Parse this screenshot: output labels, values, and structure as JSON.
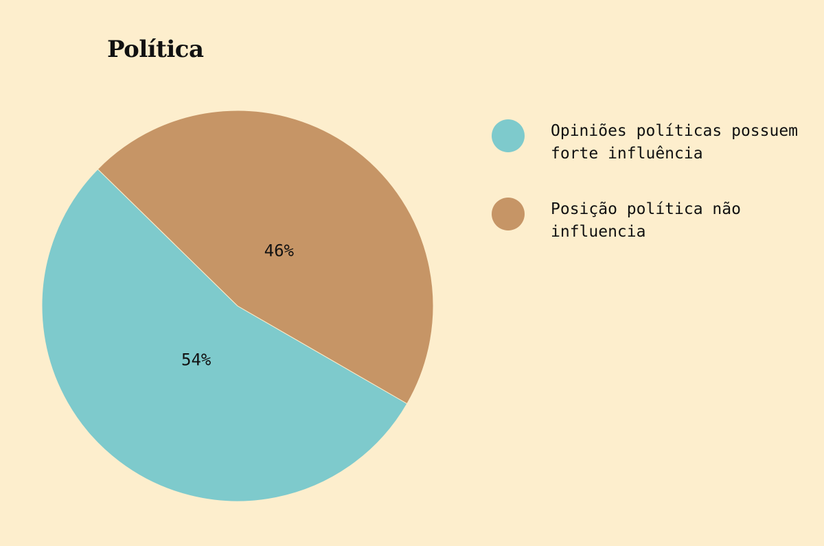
{
  "chart_data": {
    "type": "pie",
    "title": "Política",
    "slices": [
      {
        "label": "Opiniões políticas possuem\nforte influência",
        "value": 54,
        "display": "54%",
        "color": "#7ecacc"
      },
      {
        "label": "Posição política não\ninfluencia",
        "value": 46,
        "display": "46%",
        "color": "#c69566"
      }
    ],
    "legend_position": "right",
    "background": "#fdeecd"
  }
}
